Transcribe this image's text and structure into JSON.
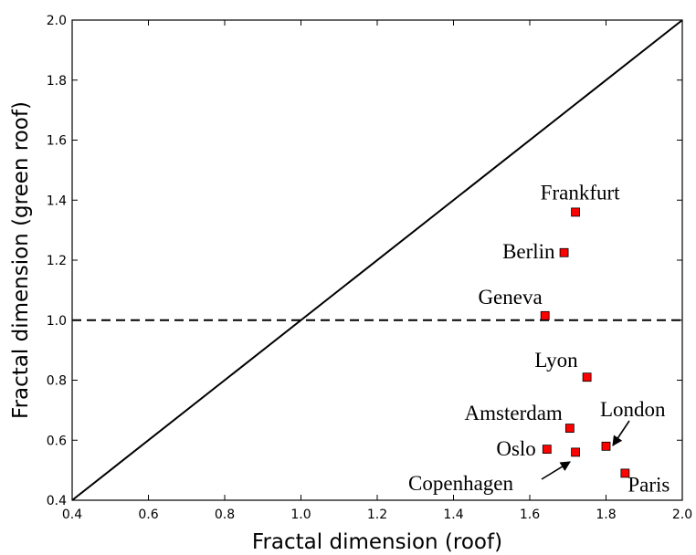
{
  "chart_data": {
    "type": "scatter",
    "xlabel": "Fractal dimension (roof)",
    "ylabel": "Fractal dimension (green roof)",
    "xlim": [
      0.4,
      2.0
    ],
    "ylim": [
      0.4,
      2.0
    ],
    "x_ticks": [
      "0.4",
      "0.6",
      "0.8",
      "1.0",
      "1.2",
      "1.4",
      "1.6",
      "1.8",
      "2.0"
    ],
    "y_ticks": [
      "0.4",
      "0.6",
      "0.8",
      "1.0",
      "1.2",
      "1.4",
      "1.6",
      "1.8",
      "2.0"
    ],
    "grid": false,
    "marker_color": "#ff0000",
    "reference_lines": [
      {
        "style": "solid",
        "from": [
          0.4,
          0.4
        ],
        "to": [
          2.0,
          2.0
        ]
      },
      {
        "style": "dashed",
        "from": [
          0.4,
          1.0
        ],
        "to": [
          2.0,
          1.0
        ]
      }
    ],
    "points": [
      {
        "label": "Frankfurt",
        "x": 1.72,
        "y": 1.36
      },
      {
        "label": "Berlin",
        "x": 1.69,
        "y": 1.225
      },
      {
        "label": "Geneva",
        "x": 1.64,
        "y": 1.015
      },
      {
        "label": "Lyon",
        "x": 1.75,
        "y": 0.81
      },
      {
        "label": "Amsterdam",
        "x": 1.705,
        "y": 0.64
      },
      {
        "label": "London",
        "x": 1.8,
        "y": 0.58
      },
      {
        "label": "Oslo",
        "x": 1.645,
        "y": 0.57
      },
      {
        "label": "Copenhagen",
        "x": 1.72,
        "y": 0.56
      },
      {
        "label": "Paris",
        "x": 1.85,
        "y": 0.49
      }
    ]
  }
}
